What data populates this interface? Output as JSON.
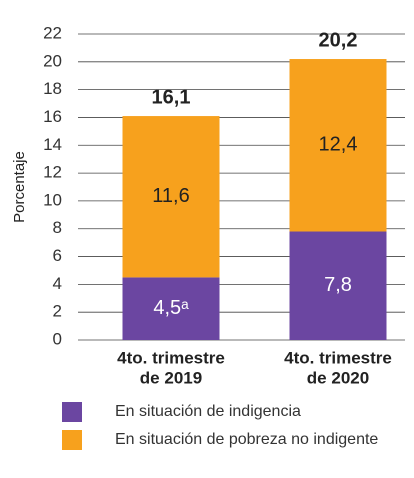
{
  "chart_data": {
    "type": "stacked_bar",
    "y_label": "Porcentaje",
    "categories": [
      [
        "4to. trimestre",
        "de 2019"
      ],
      [
        "4to. trimestre",
        "de 2020"
      ]
    ],
    "series": [
      {
        "name": "En situación de indigencia",
        "color": "#6b46a1",
        "values": [
          4.5,
          7.8
        ],
        "value_labels": [
          "4,5ᵃ",
          "7,8"
        ]
      },
      {
        "name": "En situación de pobreza no indigente",
        "color": "#f7a11d",
        "values": [
          11.6,
          12.4
        ],
        "value_labels": [
          "11,6",
          "12,4"
        ]
      }
    ],
    "totals": [
      16.1,
      20.2
    ],
    "total_labels": [
      "16,1",
      "20,2"
    ],
    "ylim": [
      0,
      22
    ],
    "yticks": [
      0,
      2,
      4,
      6,
      8,
      10,
      12,
      14,
      16,
      18,
      20,
      22
    ],
    "grid": true
  }
}
